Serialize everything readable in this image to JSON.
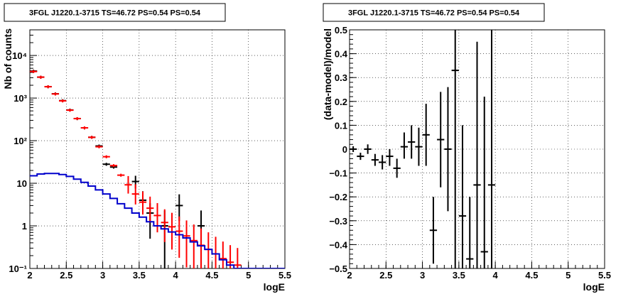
{
  "chart_data": [
    {
      "type": "scatter",
      "title": "3FGL J1220.1-3715 TS=46.72 PS=0.54 PS=0.54",
      "xlabel": "logE",
      "ylabel": "Nb of counts",
      "xlim": [
        2,
        5.5
      ],
      "ylim": [
        0.1,
        40000
      ],
      "yscale": "log",
      "grid": true,
      "x_ticks": [
        "2",
        "2.5",
        "3",
        "3.5",
        "4",
        "4.5",
        "5",
        "5.5"
      ],
      "y_ticks": [
        "10⁻¹",
        "1",
        "10",
        "10²",
        "10³",
        "10⁴"
      ],
      "series": [
        {
          "color": "#000000",
          "points": [
            {
              "x": 2.05,
              "y": 4300
            },
            {
              "x": 2.15,
              "y": 3100
            },
            {
              "x": 2.25,
              "y": 1850
            },
            {
              "x": 2.35,
              "y": 1260
            },
            {
              "x": 2.45,
              "y": 870
            },
            {
              "x": 2.55,
              "y": 525
            },
            {
              "x": 2.65,
              "y": 330
            },
            {
              "x": 2.75,
              "y": 200
            },
            {
              "x": 2.85,
              "y": 120
            },
            {
              "x": 2.95,
              "y": 75
            },
            {
              "x": 3.05,
              "y": 28
            },
            {
              "x": 3.15,
              "y": 24
            },
            {
              "x": 3.45,
              "y": 11,
              "lo": 7.5,
              "hi": 15
            },
            {
              "x": 3.55,
              "y": 4,
              "lo": 2.2,
              "hi": 6.5
            },
            {
              "x": 3.65,
              "y": 2,
              "lo": 0.5,
              "hi": 3.4
            },
            {
              "x": 3.85,
              "y": 1,
              "lo": 0.1,
              "hi": 2.3
            },
            {
              "x": 4.05,
              "y": 3,
              "lo": 1.3,
              "hi": 5.5
            },
            {
              "x": 4.35,
              "y": 1,
              "lo": 0.1,
              "hi": 2.3
            }
          ]
        },
        {
          "color": "#ff0000",
          "points": [
            {
              "x": 2.05,
              "y": 4200
            },
            {
              "x": 2.15,
              "y": 3100
            },
            {
              "x": 2.25,
              "y": 1850
            },
            {
              "x": 2.35,
              "y": 1250
            },
            {
              "x": 2.45,
              "y": 860
            },
            {
              "x": 2.55,
              "y": 520
            },
            {
              "x": 2.65,
              "y": 330
            },
            {
              "x": 2.75,
              "y": 200
            },
            {
              "x": 2.85,
              "y": 120
            },
            {
              "x": 2.95,
              "y": 72
            },
            {
              "x": 3.05,
              "y": 42
            },
            {
              "x": 3.15,
              "y": 26
            },
            {
              "x": 3.25,
              "y": 15.5
            },
            {
              "x": 3.35,
              "y": 9.2
            },
            {
              "x": 3.45,
              "y": 5.6
            },
            {
              "x": 3.55,
              "y": 3.6
            },
            {
              "x": 3.65,
              "y": 2.6
            },
            {
              "x": 3.75,
              "y": 1.75
            },
            {
              "x": 3.85,
              "y": 1.2
            },
            {
              "x": 3.95,
              "y": 0.95
            },
            {
              "x": 4.05,
              "y": 0.75
            },
            {
              "x": 4.15,
              "y": 0.58
            },
            {
              "x": 4.25,
              "y": 0.45
            },
            {
              "x": 4.35,
              "y": 0.35
            },
            {
              "x": 4.45,
              "y": 0.28
            },
            {
              "x": 4.55,
              "y": 0.22
            },
            {
              "x": 4.65,
              "y": 0.17
            },
            {
              "x": 4.75,
              "y": 0.14
            },
            {
              "x": 4.85,
              "y": 0.12
            }
          ]
        },
        {
          "color": "#0000cc",
          "style": "step",
          "bin_width": 0.1,
          "edges_start": 2.0,
          "values": [
            15,
            16.5,
            17,
            17,
            16,
            14.5,
            12.5,
            10.5,
            8.6,
            7,
            5.6,
            4.4,
            3.3,
            2.6,
            2,
            1.6,
            1.25,
            1,
            0.85,
            0.72,
            0.62,
            0.52,
            0.42,
            0.34,
            0.28,
            0.22,
            0.16,
            0.12,
            0.1,
            0.1,
            0.1,
            0.1,
            0.1,
            0.1,
            0.1
          ]
        }
      ]
    },
    {
      "type": "scatter",
      "title": "3FGL J1220.1-3715 TS=46.72 PS=0.54 PS=0.54",
      "xlabel": "logE",
      "ylabel": "(data-model)/model",
      "xlim": [
        2,
        5.5
      ],
      "ylim": [
        -0.5,
        0.5
      ],
      "grid": true,
      "x_ticks": [
        "2",
        "2.5",
        "3",
        "3.5",
        "4",
        "4.5",
        "5",
        "5.5"
      ],
      "y_ticks": [
        "−0.5",
        "−0.4",
        "−0.3",
        "−0.2",
        "−0.1",
        "0",
        "0.1",
        "0.2",
        "0.3",
        "0.4",
        "0.5"
      ],
      "series": [
        {
          "color": "#000000",
          "points": [
            {
              "x": 2.05,
              "y": 0.0,
              "lo": -0.012,
              "hi": 0.012
            },
            {
              "x": 2.15,
              "y": -0.03,
              "lo": -0.045,
              "hi": -0.015
            },
            {
              "x": 2.25,
              "y": 0.0,
              "lo": -0.02,
              "hi": 0.02
            },
            {
              "x": 2.35,
              "y": -0.045,
              "lo": -0.07,
              "hi": -0.02
            },
            {
              "x": 2.45,
              "y": -0.055,
              "lo": -0.085,
              "hi": -0.025
            },
            {
              "x": 2.55,
              "y": -0.03,
              "lo": -0.07,
              "hi": 0.0
            },
            {
              "x": 2.65,
              "y": -0.08,
              "lo": -0.12,
              "hi": -0.04
            },
            {
              "x": 2.75,
              "y": 0.01,
              "lo": -0.04,
              "hi": 0.07
            },
            {
              "x": 2.85,
              "y": 0.03,
              "lo": -0.04,
              "hi": 0.1
            },
            {
              "x": 2.95,
              "y": 0.01,
              "lo": -0.07,
              "hi": 0.09
            },
            {
              "x": 3.05,
              "y": 0.06,
              "lo": -0.07,
              "hi": 0.19
            },
            {
              "x": 3.15,
              "y": -0.34,
              "lo": -0.48,
              "hi": -0.2
            },
            {
              "x": 3.25,
              "y": 0.04,
              "lo": -0.16,
              "hi": 0.24
            },
            {
              "x": 3.35,
              "y": 0.0,
              "lo": -0.26,
              "hi": 0.26
            },
            {
              "x": 3.45,
              "y": 0.33,
              "lo": -0.5,
              "hi": 0.5
            },
            {
              "x": 3.55,
              "y": -0.28,
              "lo": -0.5,
              "hi": 0.1
            },
            {
              "x": 3.65,
              "y": -0.46,
              "lo": -0.5,
              "hi": -0.2
            },
            {
              "x": 3.75,
              "y": -0.15,
              "lo": -0.5,
              "hi": 0.45
            },
            {
              "x": 3.85,
              "y": -0.43,
              "lo": -0.5,
              "hi": 0.22
            },
            {
              "x": 3.95,
              "y": -0.15,
              "lo": -0.5,
              "hi": 0.5
            }
          ]
        }
      ]
    }
  ]
}
